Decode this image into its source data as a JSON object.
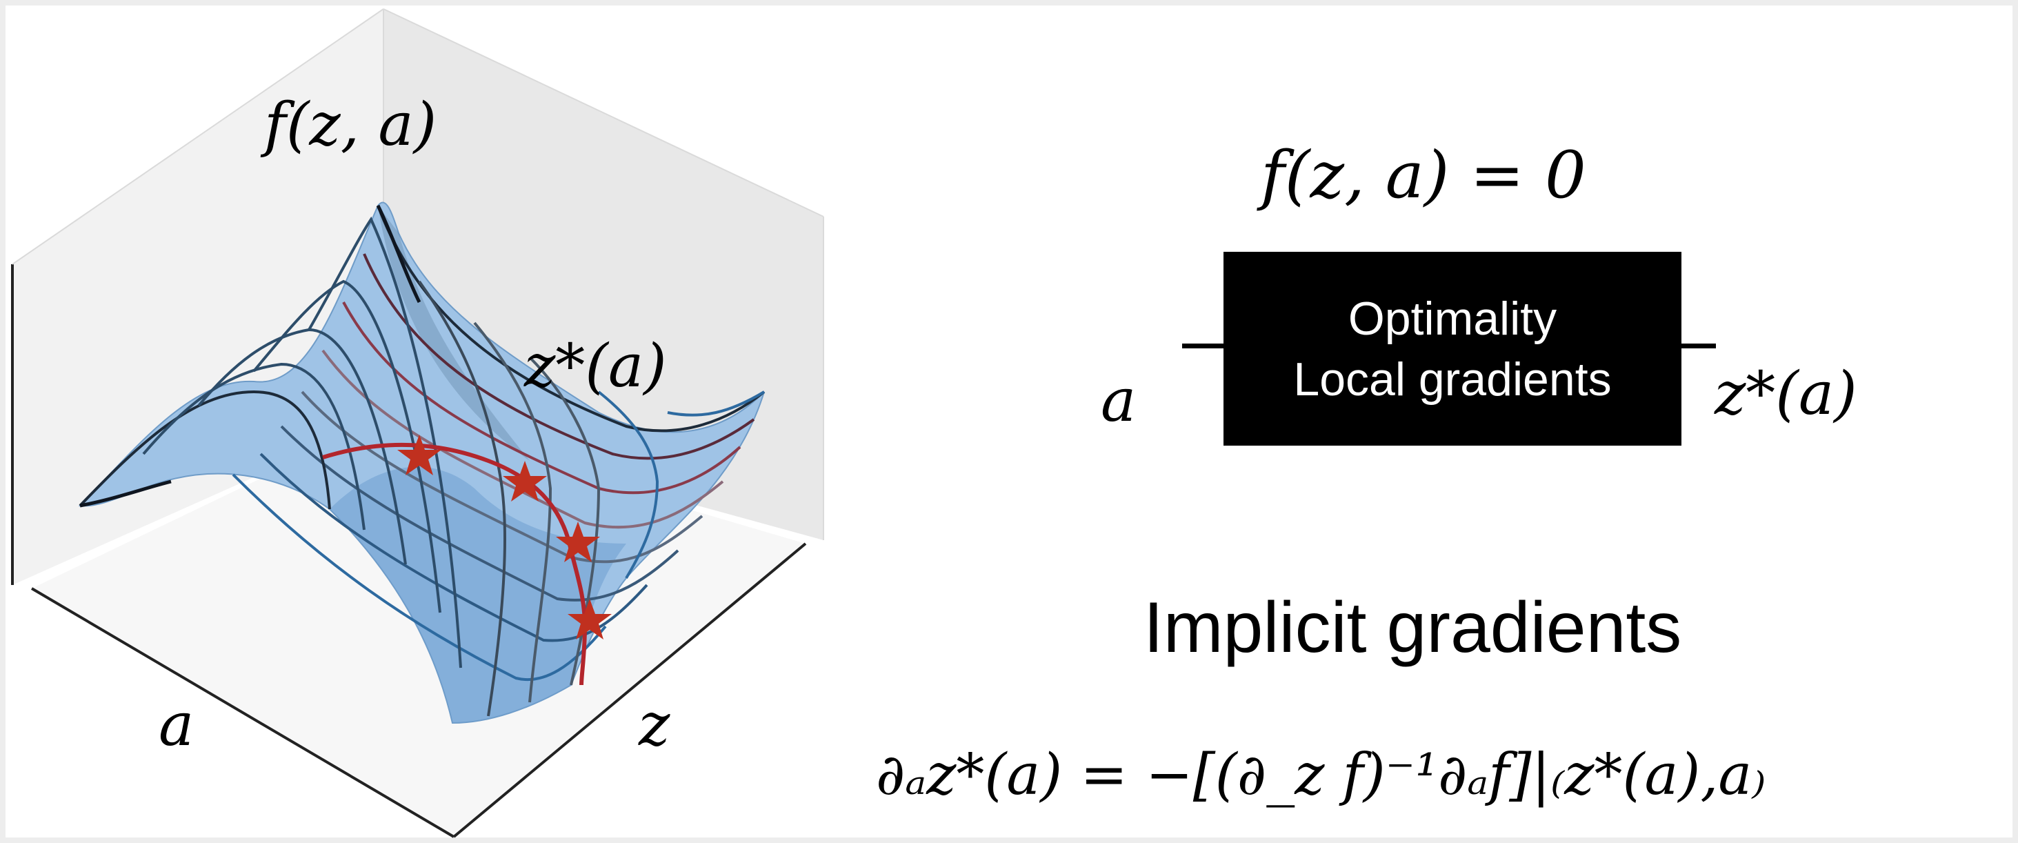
{
  "plot": {
    "vertical_label": "f(z, a)",
    "curve_label": "z*(a)",
    "axis_label_left": "a",
    "axis_label_right": "z"
  },
  "block_diagram": {
    "equation": "f(z, a) = 0",
    "box_lines": [
      "Optimality",
      "Local gradients"
    ],
    "input_label": "a",
    "output_label": "z*(a)"
  },
  "implicit": {
    "heading": "Implicit gradients",
    "formula": "∂ₐz*(a) = −[(∂_z f)⁻¹∂ₐf]|₍z*(a),a₎"
  },
  "colors": {
    "surface": "#9fc3e6",
    "grid_dark": "#1d2b3a",
    "curve": "#b3262c",
    "star": "#c0301f"
  },
  "markers": {
    "count": 4,
    "shape": "star"
  }
}
